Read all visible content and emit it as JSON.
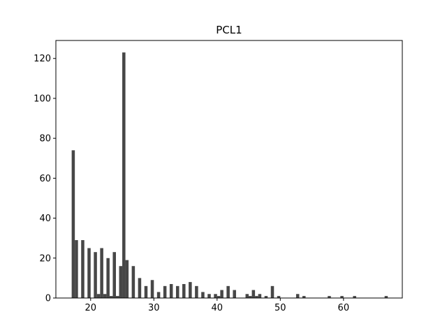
{
  "chart_data": {
    "type": "bar",
    "title": "PCL1",
    "xlabel": "",
    "ylabel": "",
    "xlim": [
      14.5,
      69.3
    ],
    "ylim": [
      0,
      129
    ],
    "xticks": [
      20,
      30,
      40,
      50,
      60
    ],
    "yticks": [
      0,
      20,
      40,
      60,
      80,
      100,
      120
    ],
    "bar_width": 0.5,
    "grid": false,
    "bar_color": "#474747",
    "x": [
      17.25,
      17.75,
      18.75,
      19.75,
      20.75,
      21.25,
      21.75,
      22.25,
      22.75,
      23.25,
      23.75,
      24.25,
      24.75,
      25.25,
      25.75,
      26.75,
      27.75,
      28.75,
      29.75,
      30.75,
      31.75,
      32.75,
      33.75,
      34.75,
      35.75,
      36.75,
      37.75,
      38.75,
      39.75,
      40.25,
      40.75,
      41.75,
      42.75,
      44.75,
      45.25,
      45.75,
      46.25,
      46.75,
      47.75,
      48.75,
      49.75,
      52.75,
      53.75,
      57.75,
      59.75,
      61.75,
      66.75
    ],
    "values": [
      74,
      29,
      29,
      25,
      23,
      2,
      25,
      2,
      20,
      1,
      23,
      1,
      16,
      123,
      19,
      16,
      10,
      6,
      9,
      3,
      6,
      7,
      6,
      7,
      8,
      6,
      3,
      2,
      2,
      1,
      4,
      6,
      4,
      2,
      1,
      4,
      1,
      2,
      1,
      6,
      1,
      2,
      1,
      1,
      1,
      1,
      1
    ]
  }
}
